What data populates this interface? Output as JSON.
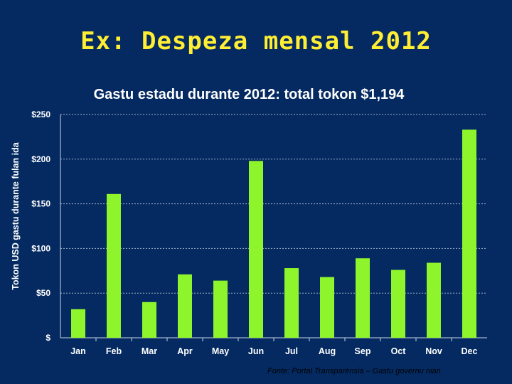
{
  "slide": {
    "title": "Ex: Despeza mensal 2012",
    "source": "Fonte: Portal Transparénsia – Gastu governu nian"
  },
  "chart_data": {
    "type": "bar",
    "title": "Gastu estadu durante 2012: total tokon $1,194",
    "xlabel": "",
    "ylabel": "Tokon USD gastu durante fulan ida",
    "categories": [
      "Jan",
      "Feb",
      "Mar",
      "Apr",
      "May",
      "Jun",
      "Jul",
      "Aug",
      "Sep",
      "Oct",
      "Nov",
      "Dec"
    ],
    "values": [
      32,
      161,
      40,
      71,
      64,
      198,
      78,
      68,
      89,
      76,
      84,
      233
    ],
    "ylim": [
      0,
      250
    ],
    "yticks": [
      0,
      50,
      100,
      150,
      200,
      250
    ],
    "ytick_labels": [
      "$",
      "$50",
      "$100",
      "$150",
      "$200",
      "$250"
    ],
    "grid": true,
    "colors": {
      "bar": "#8ef42c",
      "text": "#ffffff",
      "grid": "#9fb3cc",
      "axis": "#c8d4e4"
    }
  }
}
